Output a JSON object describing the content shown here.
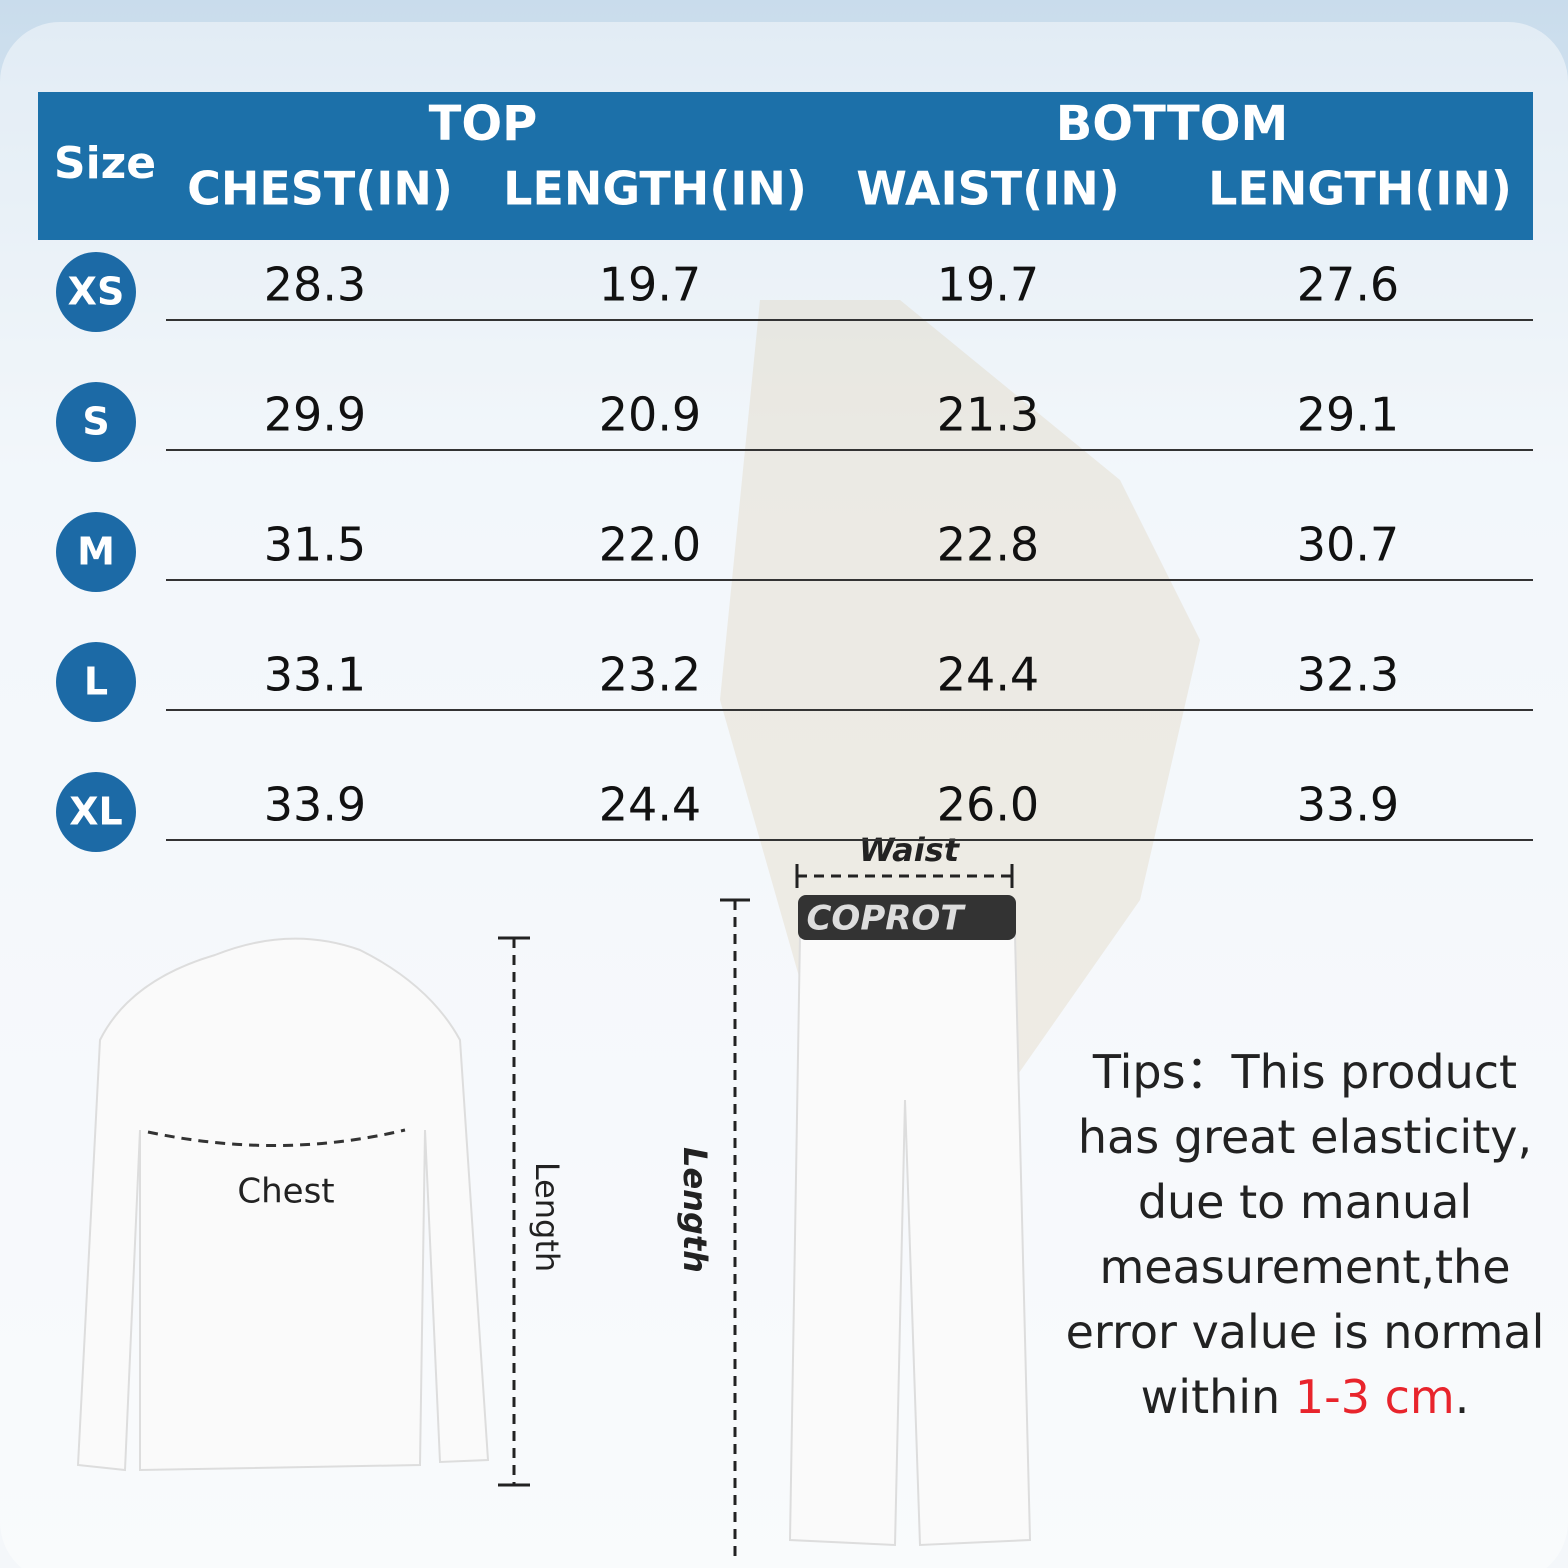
{
  "header": {
    "size_label": "Size",
    "groups": [
      "TOP",
      "BOTTOM"
    ],
    "columns": [
      "CHEST(IN)",
      "LENGTH(IN)",
      "WAIST(IN)",
      "LENGTH(IN)"
    ]
  },
  "table": {
    "rows": [
      [
        "XS",
        "28.3",
        "19.7",
        "19.7",
        "27.6"
      ],
      [
        "S",
        "29.9",
        "20.9",
        "21.3",
        "29.1"
      ],
      [
        "M",
        "31.5",
        "22.0",
        "22.8",
        "30.7"
      ],
      [
        "L",
        "33.1",
        "23.2",
        "24.4",
        "32.3"
      ],
      [
        "XL",
        "33.9",
        "24.4",
        "26.0",
        "33.9"
      ]
    ]
  },
  "illustration": {
    "waist_label": "Waist",
    "waistband_text": "COPROT",
    "chest_label": "Chest",
    "top_length_label": "Length",
    "bottom_length_label": "Length"
  },
  "tips": {
    "text": "Tips：This product has great elasticity, due to manual measurement,the error value is normal within ",
    "highlight": "1-3 cm",
    "end": "."
  }
}
